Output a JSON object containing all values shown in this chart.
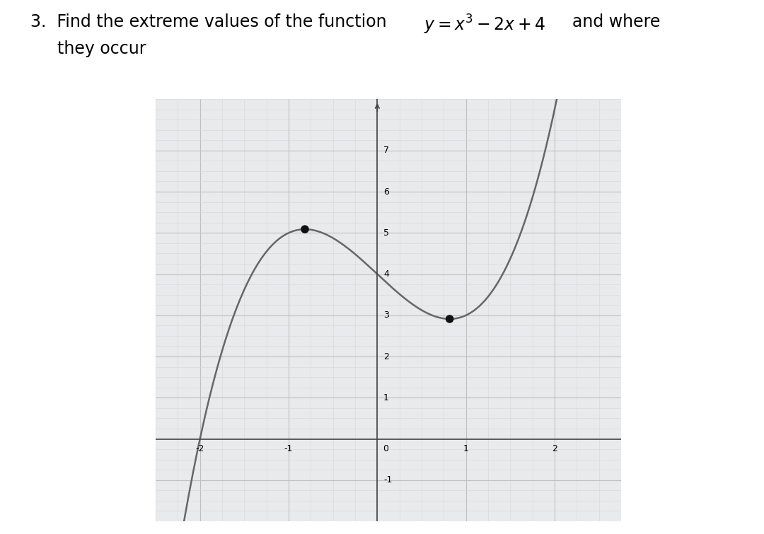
{
  "xlim": [
    -2.4,
    2.6
  ],
  "ylim": [
    -1.8,
    8.2
  ],
  "xticks": [
    -2,
    -1,
    0,
    1,
    2
  ],
  "yticks": [
    -1,
    1,
    2,
    3,
    4,
    5,
    6,
    7
  ],
  "x_extreme1": -0.8165,
  "y_extreme1": 5.0887,
  "x_extreme2": 0.8165,
  "y_extreme2": 2.9113,
  "curve_color": "#666666",
  "dot_color": "#111111",
  "dot_size": 70,
  "grid_minor_color": "#d8d8d8",
  "grid_major_color": "#c0c0c0",
  "bg_color": "#e8eaec",
  "axis_line_color": "#444444",
  "fig_width": 10.8,
  "fig_height": 7.55,
  "title_fontsize": 17,
  "tick_fontsize": 9
}
